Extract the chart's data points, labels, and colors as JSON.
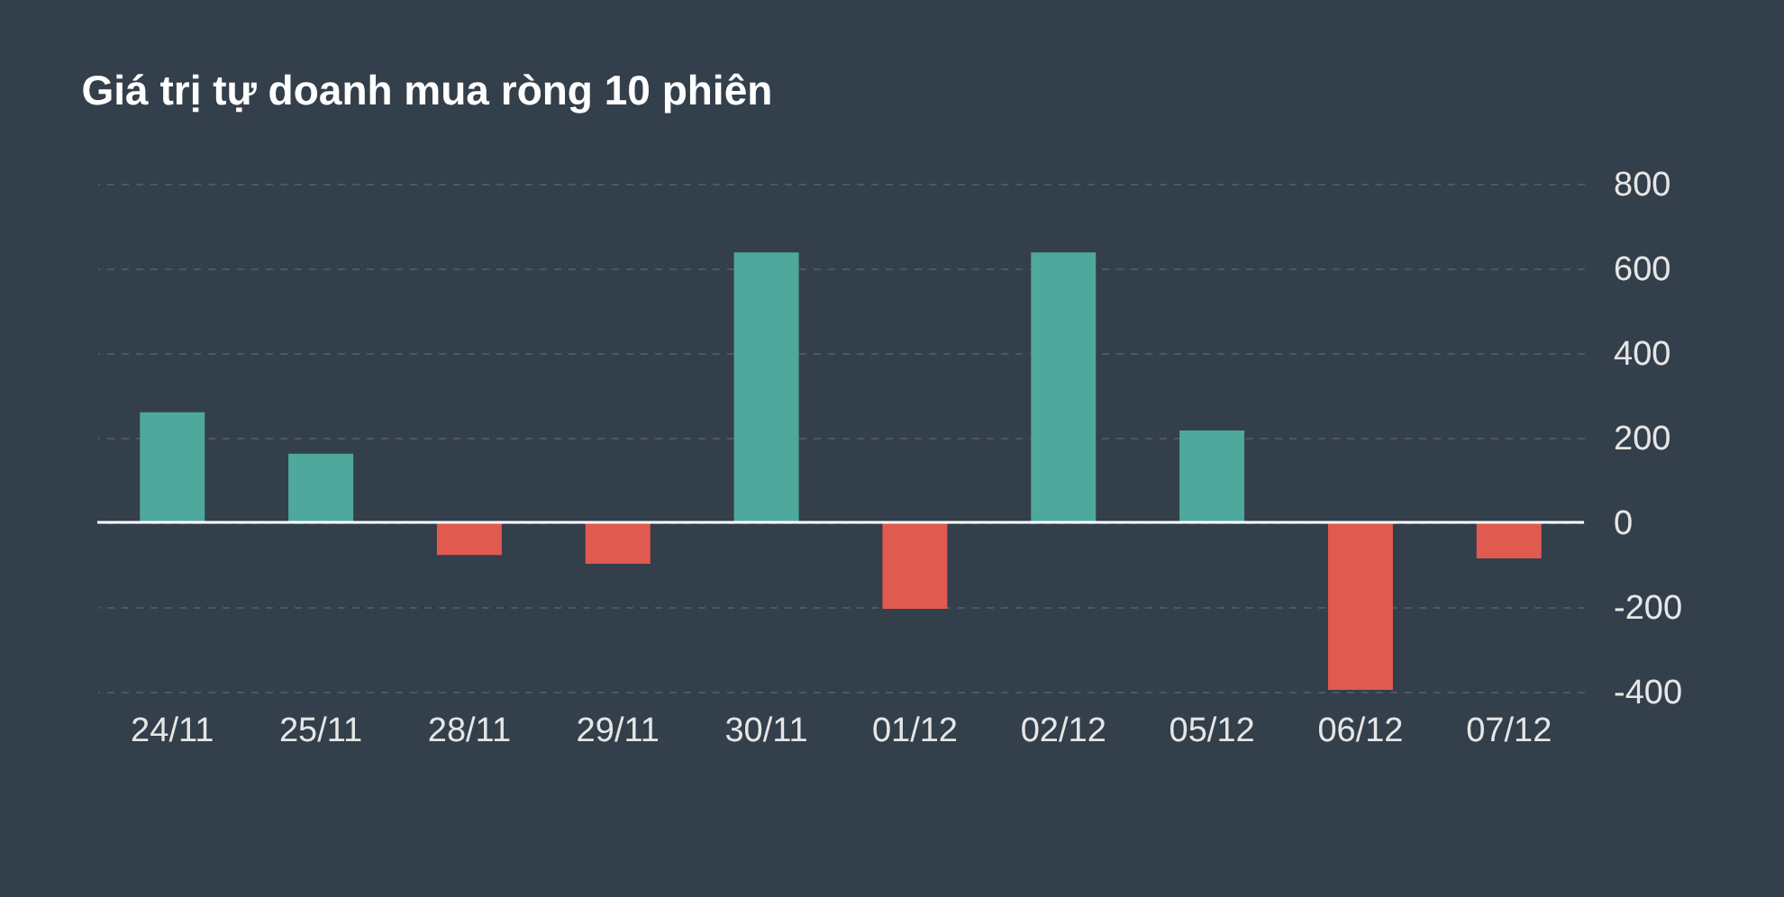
{
  "chart_data": {
    "type": "bar",
    "title": "Giá trị tự doanh mua ròng 10 phiên",
    "categories": [
      "24/11",
      "25/11",
      "28/11",
      "29/11",
      "30/11",
      "01/12",
      "02/12",
      "05/12",
      "06/12",
      "07/12"
    ],
    "values": [
      260,
      162,
      -77,
      -98,
      638,
      -204,
      638,
      217,
      -396,
      -85
    ],
    "colors": [
      "#4fa89c",
      "#4fa89c",
      "#e05a50",
      "#e05a50",
      "#4fa89c",
      "#e05a50",
      "#4fa89c",
      "#4fa89c",
      "#e05a50",
      "#e05a50"
    ],
    "ylim": [
      -400,
      800
    ],
    "yticks": [
      -400,
      -200,
      0,
      200,
      400,
      600,
      800
    ],
    "grid": "y",
    "ref_lines": [
      {
        "axis": "y",
        "value": 0,
        "color": "#ffffff"
      }
    ]
  }
}
